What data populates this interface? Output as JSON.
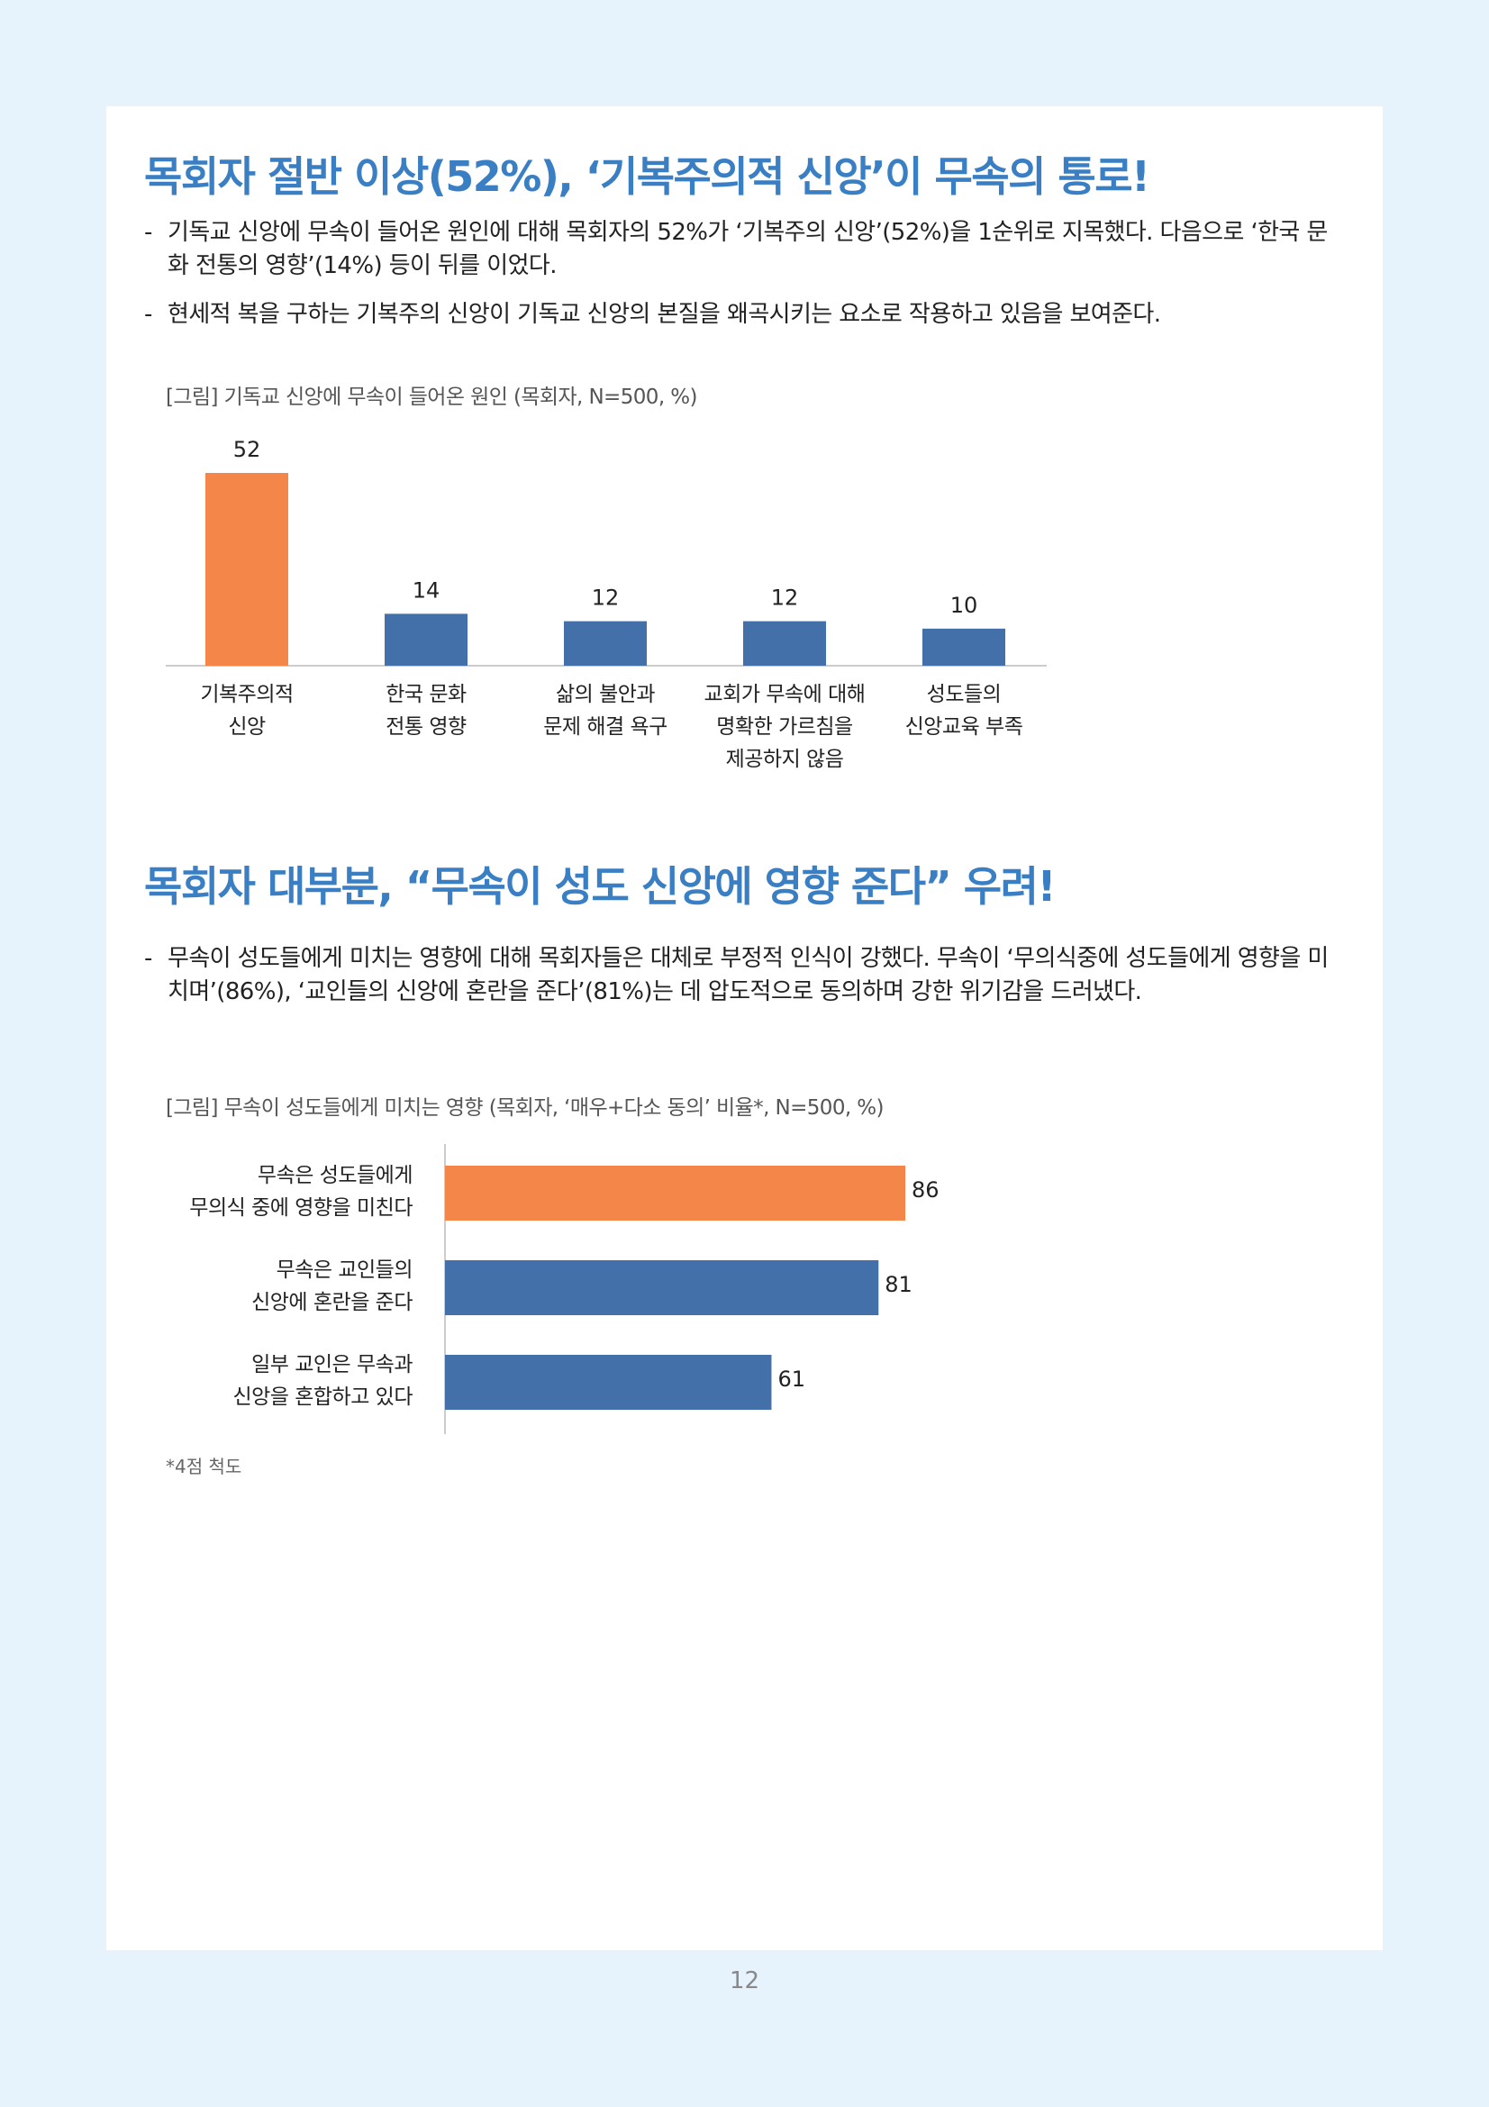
{
  "section1": {
    "heading": "목회자 절반 이상(52%), ‘기복주의적 신앙’이 무속의 통로!",
    "bullets": [
      "기독교 신앙에 무속이 들어온 원인에 대해 목회자의 52%가 ‘기복주의 신앙’(52%)을 1순위로 지목했다. 다음으로 ‘한국 문화 전통의 영향’(14%) 등이 뒤를 이었다.",
      "현세적 복을 구하는 기복주의 신앙이 기독교 신앙의 본질을 왜곡시키는 요소로 작용하고 있음을 보여준다."
    ],
    "caption": "[그림] 기독교 신앙에 무속이 들어온 원인 (목회자, N=500, %)"
  },
  "section2": {
    "heading": "목회자 대부분, “무속이 성도 신앙에 영향 준다” 우려!",
    "bullets": [
      "무속이 성도들에게 미치는 영향에 대해 목회자들은 대체로 부정적 인식이 강했다. 무속이 ‘무의식중에 성도들에게 영향을 미치며’(86%), ‘교인들의 신앙에 혼란을 준다’(81%)는 데 압도적으로 동의하며 강한 위기감을 드러냈다."
    ],
    "caption": "[그림] 무속이 성도들에게 미치는 영향 (목회자, ‘매우+다소 동의’ 비율*, N=500, %)",
    "footnote": "*4점 척도"
  },
  "page_number": "12",
  "colors": {
    "heading": "#3a7fc4",
    "highlight": "#f5864a",
    "bar": "#4470a9",
    "axis": "#bbbbbb"
  },
  "chart_data": [
    {
      "type": "bar",
      "orientation": "vertical",
      "categories": [
        [
          "기복주의적",
          "신앙"
        ],
        [
          "한국 문화",
          "전통 영향"
        ],
        [
          "삶의 불안과",
          "문제 해결 욕구"
        ],
        [
          "교회가 무속에 대해",
          "명확한 가르침을",
          "제공하지 않음"
        ],
        [
          "성도들의",
          "신앙교육 부족"
        ]
      ],
      "values": [
        52,
        14,
        12,
        12,
        10
      ],
      "highlight_index": 0,
      "ylim": [
        0,
        52
      ]
    },
    {
      "type": "bar",
      "orientation": "horizontal",
      "categories": [
        [
          "무속은 성도들에게",
          "무의식 중에 영향을 미친다"
        ],
        [
          "무속은 교인들의",
          "신앙에 혼란을 준다"
        ],
        [
          "일부 교인은 무속과",
          "신앙을 혼합하고 있다"
        ]
      ],
      "values": [
        86,
        81,
        61
      ],
      "highlight_index": 0,
      "xlim": [
        0,
        100
      ]
    }
  ]
}
